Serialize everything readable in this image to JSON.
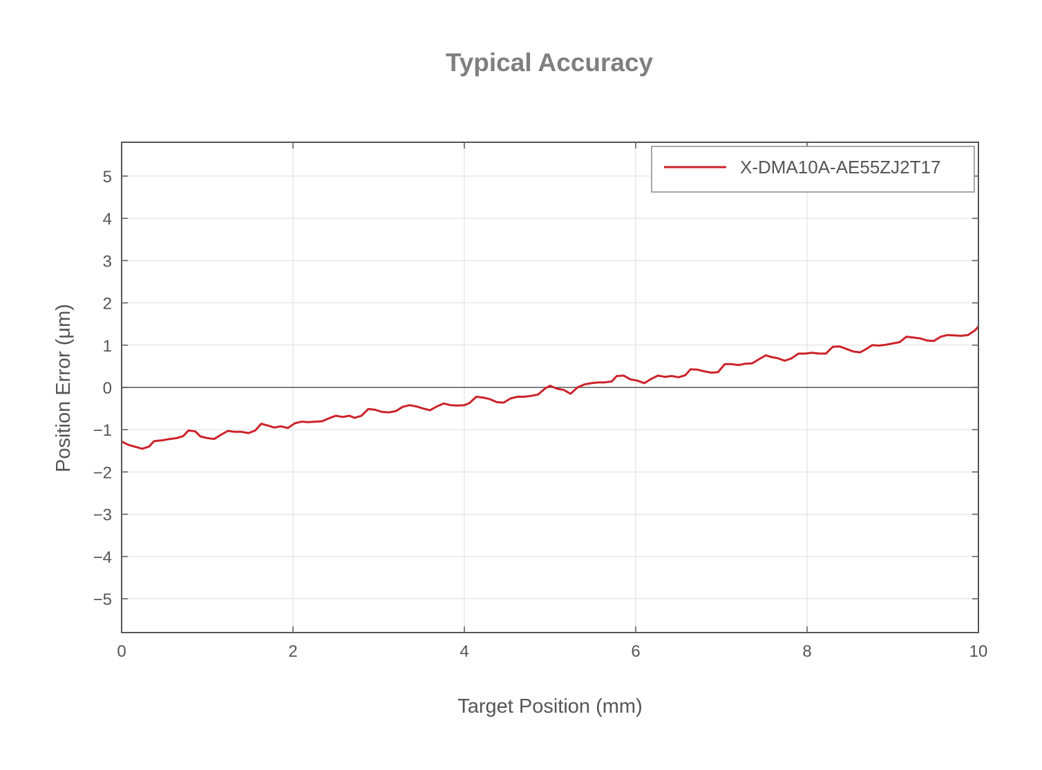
{
  "chart_data": {
    "type": "line",
    "title": "Typical Accuracy",
    "xlabel": "Target Position (mm)",
    "ylabel": "Position Error (μm)",
    "xlim": [
      0,
      10
    ],
    "ylim": [
      -5.8,
      5.8
    ],
    "xticks": [
      0,
      2,
      4,
      6,
      8,
      10
    ],
    "xtick_labels": [
      "0",
      "2",
      "4",
      "6",
      "8",
      "10"
    ],
    "yticks": [
      5,
      4,
      3,
      2,
      1,
      0,
      -1,
      -2,
      -3,
      -4,
      -5
    ],
    "ytick_labels": [
      "5",
      "4",
      "3",
      "2",
      "1",
      "0",
      "−1",
      "−2",
      "−3",
      "−4",
      "−5"
    ],
    "grid": true,
    "legend_position": "top-right",
    "series": [
      {
        "name": "X-DMA10A-AE55ZJ2T17",
        "color": "#cc2229",
        "x": [
          0.0,
          0.08,
          0.24,
          0.32,
          0.38,
          0.48,
          0.56,
          0.64,
          0.72,
          0.78,
          0.86,
          0.92,
          1.0,
          1.08,
          1.16,
          1.24,
          1.32,
          1.4,
          1.48,
          1.56,
          1.63,
          1.72,
          1.78,
          1.86,
          1.94,
          2.02,
          2.1,
          2.18,
          2.26,
          2.34,
          2.42,
          2.5,
          2.58,
          2.66,
          2.72,
          2.8,
          2.88,
          2.96,
          3.04,
          3.12,
          3.2,
          3.28,
          3.36,
          3.44,
          3.52,
          3.6,
          3.68,
          3.76,
          3.84,
          3.92,
          4.0,
          4.06,
          4.14,
          4.22,
          4.3,
          4.38,
          4.46,
          4.54,
          4.62,
          4.7,
          4.78,
          4.86,
          4.94,
          5.0,
          5.08,
          5.16,
          5.24,
          5.32,
          5.4,
          5.48,
          5.56,
          5.64,
          5.72,
          5.78,
          5.86,
          5.94,
          6.02,
          6.1,
          6.18,
          6.26,
          6.34,
          6.42,
          6.5,
          6.58,
          6.64,
          6.72,
          6.8,
          6.88,
          6.96,
          7.04,
          7.12,
          7.2,
          7.28,
          7.36,
          7.44,
          7.52,
          7.58,
          7.66,
          7.74,
          7.82,
          7.9,
          7.98,
          8.06,
          8.14,
          8.22,
          8.3,
          8.38,
          8.46,
          8.54,
          8.62,
          8.7,
          8.76,
          8.84,
          8.92,
          9.0,
          9.08,
          9.16,
          9.24,
          9.32,
          9.4,
          9.48,
          9.56,
          9.64,
          9.72,
          9.8,
          9.88,
          9.96,
          10.0
        ],
        "y": [
          -1.28,
          -1.36,
          -1.45,
          -1.4,
          -1.27,
          -1.25,
          -1.22,
          -1.2,
          -1.15,
          -1.02,
          -1.04,
          -1.16,
          -1.2,
          -1.22,
          -1.12,
          -1.03,
          -1.05,
          -1.05,
          -1.08,
          -1.02,
          -0.86,
          -0.91,
          -0.95,
          -0.92,
          -0.96,
          -0.85,
          -0.81,
          -0.82,
          -0.81,
          -0.8,
          -0.73,
          -0.67,
          -0.7,
          -0.67,
          -0.72,
          -0.67,
          -0.51,
          -0.53,
          -0.58,
          -0.59,
          -0.56,
          -0.46,
          -0.42,
          -0.45,
          -0.5,
          -0.54,
          -0.45,
          -0.38,
          -0.42,
          -0.43,
          -0.42,
          -0.37,
          -0.22,
          -0.24,
          -0.28,
          -0.35,
          -0.36,
          -0.26,
          -0.22,
          -0.22,
          -0.2,
          -0.17,
          -0.03,
          0.04,
          -0.03,
          -0.06,
          -0.15,
          0.0,
          0.07,
          0.1,
          0.12,
          0.12,
          0.14,
          0.27,
          0.28,
          0.19,
          0.16,
          0.1,
          0.2,
          0.28,
          0.25,
          0.27,
          0.24,
          0.29,
          0.43,
          0.42,
          0.38,
          0.35,
          0.36,
          0.55,
          0.55,
          0.53,
          0.56,
          0.57,
          0.67,
          0.76,
          0.72,
          0.69,
          0.63,
          0.69,
          0.8,
          0.8,
          0.82,
          0.8,
          0.8,
          0.96,
          0.97,
          0.91,
          0.85,
          0.83,
          0.92,
          1.0,
          0.99,
          1.01,
          1.04,
          1.07,
          1.2,
          1.18,
          1.16,
          1.11,
          1.1,
          1.2,
          1.24,
          1.23,
          1.22,
          1.24,
          1.35,
          1.44
        ]
      }
    ]
  }
}
